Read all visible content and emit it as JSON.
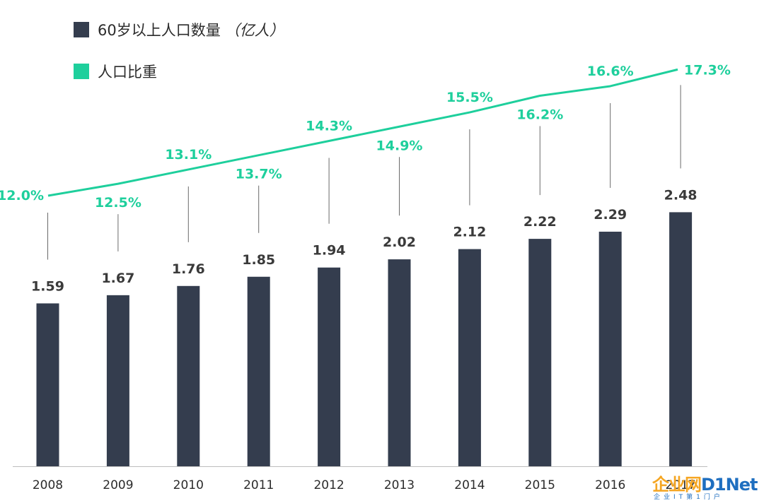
{
  "legend": {
    "bars_label": "60岁以上人口数量",
    "bars_unit": "（亿人）",
    "line_label": "人口比重"
  },
  "colors": {
    "bar": "#343d4e",
    "line": "#1ecf9c",
    "leader": "#6a6a6a",
    "axis": "#bdbdbd",
    "bar_label": "#3a3a3a",
    "tick_label": "#2b2b2b"
  },
  "chart_data": {
    "type": "bar",
    "categories": [
      "2008",
      "2009",
      "2010",
      "2011",
      "2012",
      "2013",
      "2014",
      "2015",
      "2016",
      "2017"
    ],
    "series": [
      {
        "name": "60岁以上人口数量（亿人）",
        "type": "bar",
        "values": [
          1.59,
          1.67,
          1.76,
          1.85,
          1.94,
          2.02,
          2.12,
          2.22,
          2.29,
          2.48
        ],
        "labels": [
          "1.59",
          "1.67",
          "1.76",
          "1.85",
          "1.94",
          "2.02",
          "2.12",
          "2.22",
          "2.29",
          "2.48"
        ]
      },
      {
        "name": "人口比重",
        "type": "line",
        "values": [
          12.0,
          12.5,
          13.1,
          13.7,
          14.3,
          14.9,
          15.5,
          16.2,
          16.6,
          17.3
        ],
        "labels": [
          "12.0%",
          "12.5%",
          "13.1%",
          "13.7%",
          "14.3%",
          "14.9%",
          "15.5%",
          "16.2%",
          "16.6%",
          "17.3%"
        ],
        "label_positions": [
          "left",
          "below",
          "above",
          "below",
          "above",
          "below",
          "above",
          "below",
          "above",
          "right"
        ]
      }
    ],
    "grid": false,
    "legend_position": "top-left"
  },
  "watermark": {
    "cn": "企业网",
    "en": "D1Net",
    "sub": "企业IT第1门户"
  }
}
